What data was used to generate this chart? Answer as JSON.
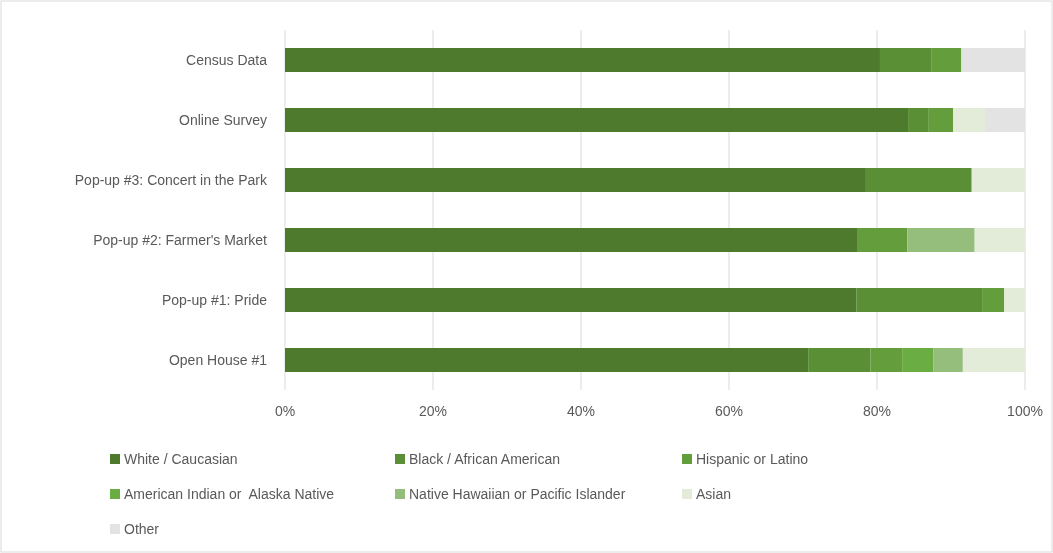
{
  "chart_data": {
    "type": "bar",
    "orientation": "horizontal",
    "stacked": true,
    "categories": [
      "Census Data",
      "Online Survey",
      "Pop-up #3: Concert in the Park",
      "Pop-up #2: Farmer's Market",
      "Pop-up #1: Pride",
      "Open House #1"
    ],
    "series": [
      {
        "name": "White / Caucasian",
        "color": "#4e7a2e",
        "values": [
          80.4,
          84.2,
          78.5,
          77.3,
          77.2,
          70.7
        ]
      },
      {
        "name": "Black / African American",
        "color": "#5a8f35",
        "values": [
          7.0,
          2.8,
          14.3,
          0,
          17.0,
          8.4
        ]
      },
      {
        "name": "Hispanic or Latino",
        "color": "#649e3c",
        "values": [
          4.0,
          3.3,
          0,
          6.8,
          3.0,
          4.3
        ]
      },
      {
        "name": "American Indian or  Alaska Native",
        "color": "#6aad42",
        "values": [
          0,
          0,
          0,
          0,
          0,
          4.2
        ]
      },
      {
        "name": "Native Hawaiian or Pacific Islander",
        "color": "#95be7c",
        "values": [
          0,
          0,
          0,
          9.1,
          0,
          4.0
        ]
      },
      {
        "name": "Asian",
        "color": "#e2ecd8",
        "values": [
          0,
          4.3,
          7.2,
          6.8,
          2.8,
          8.4
        ]
      },
      {
        "name": "Other",
        "color": "#e3e3e3",
        "values": [
          8.6,
          5.4,
          0,
          0,
          0,
          0
        ]
      }
    ],
    "xlim": [
      0,
      100
    ],
    "xticks": [
      {
        "value": 0,
        "label": "0%"
      },
      {
        "value": 20,
        "label": "20%"
      },
      {
        "value": 40,
        "label": "40%"
      },
      {
        "value": 60,
        "label": "60%"
      },
      {
        "value": 80,
        "label": "80%"
      },
      {
        "value": 100,
        "label": "100%"
      }
    ],
    "grid": "x",
    "legend": "bottom"
  }
}
